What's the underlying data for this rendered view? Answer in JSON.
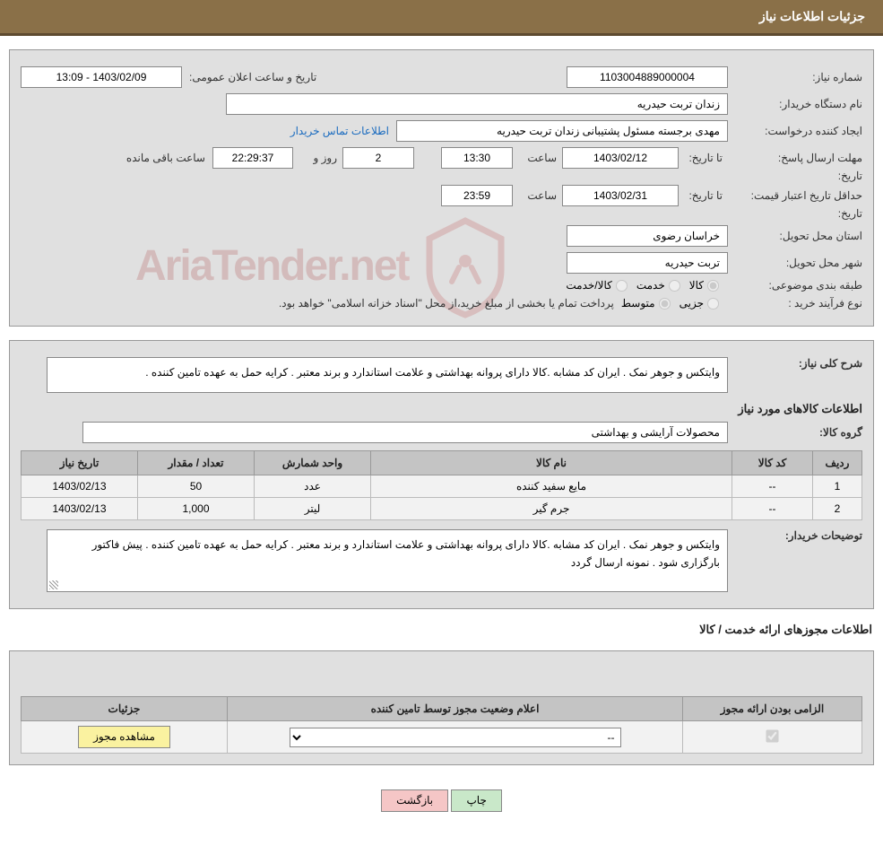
{
  "header": {
    "title": "جزئیات اطلاعات نیاز"
  },
  "info": {
    "need_number_label": "شماره نیاز:",
    "need_number": "1103004889000004",
    "announce_label": "تاریخ و ساعت اعلان عمومی:",
    "announce_value": "1403/02/09 - 13:09",
    "buyer_org_label": "نام دستگاه خریدار:",
    "buyer_org": "زندان تربت حیدریه",
    "requester_label": "ایجاد کننده درخواست:",
    "requester": "مهدی برجسته مسئول پشتیبانی زندان تربت حیدریه",
    "contact_link": "اطلاعات تماس خریدار",
    "deadline_label": "مهلت ارسال پاسخ:",
    "until_label": "تا تاریخ:",
    "deadline_date": "1403/02/12",
    "hour_label": "ساعت",
    "deadline_time": "13:30",
    "days_remain": "2",
    "days_and": "روز و",
    "hours_remain": "22:29:37",
    "remain_suffix": "ساعت باقی مانده",
    "validity_label": "حداقل تاریخ اعتبار قیمت:",
    "validity_date": "1403/02/31",
    "validity_time": "23:59",
    "province_label": "استان محل تحویل:",
    "province": "خراسان رضوی",
    "city_label": "شهر محل تحویل:",
    "city": "تربت حیدریه",
    "category_label": "طبقه بندی موضوعی:",
    "cat_opt1": "کالا",
    "cat_opt2": "خدمت",
    "cat_opt3": "کالا/خدمت",
    "process_label": "نوع فرآیند خرید :",
    "proc_opt1": "جزیی",
    "proc_opt2": "متوسط",
    "process_note": "پرداخت تمام یا بخشی از مبلغ خرید،از محل \"اسناد خزانه اسلامی\" خواهد بود."
  },
  "need": {
    "summary_label": "شرح کلی نیاز:",
    "summary": "وایتکس و جوهر نمک . ایران کد مشابه .کالا دارای پروانه بهداشتی و علامت استاندارد و برند معتبر . کرایه حمل به عهده تامین کننده .",
    "items_title": "اطلاعات کالاهای مورد نیاز",
    "group_label": "گروه کالا:",
    "group": "محصولات آرایشی و بهداشتی",
    "table": {
      "headers": [
        "ردیف",
        "کد کالا",
        "نام کالا",
        "واحد شمارش",
        "تعداد / مقدار",
        "تاریخ نیاز"
      ],
      "rows": [
        [
          "1",
          "--",
          "مایع سفید کننده",
          "عدد",
          "50",
          "1403/02/13"
        ],
        [
          "2",
          "--",
          "جرم گیر",
          "لیتر",
          "1,000",
          "1403/02/13"
        ]
      ]
    },
    "buyer_notes_label": "توضیحات خریدار:",
    "buyer_notes": "وایتکس و جوهر نمک . ایران کد مشابه .کالا دارای پروانه بهداشتی و علامت استاندارد و برند معتبر . کرایه حمل به عهده تامین کننده . پیش فاکتور بارگزاری شود . نمونه ارسال گردد"
  },
  "license": {
    "section_title": "اطلاعات مجوزهای ارائه خدمت / کالا",
    "headers": [
      "الزامی بودن ارائه مجوز",
      "اعلام وضعیت مجوز توسط تامین کننده",
      "جزئیات"
    ],
    "select_placeholder": "--",
    "view_btn": "مشاهده مجوز"
  },
  "buttons": {
    "print": "چاپ",
    "back": "بازگشت"
  },
  "colors": {
    "header_bg": "#8a7048",
    "panel_bg": "#e0e0e0",
    "th_bg": "#c4c4c4",
    "link": "#1a6bbf"
  }
}
